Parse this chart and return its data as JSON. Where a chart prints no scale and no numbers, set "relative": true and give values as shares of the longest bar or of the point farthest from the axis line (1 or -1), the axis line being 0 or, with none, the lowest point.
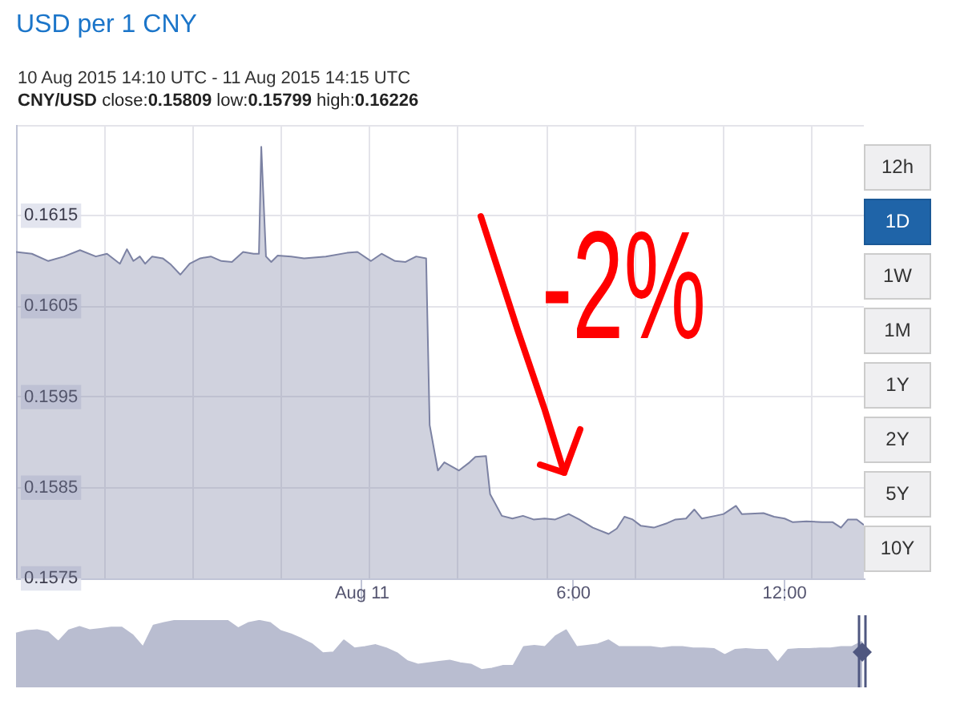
{
  "chart_data": [
    {
      "type": "area",
      "title": "USD per 1 CNY",
      "subtitle": "10 Aug 2015 14:10 UTC - 11 Aug 2015 14:15 UTC",
      "annotations": [
        "CNY/USD close:0.15809 low:0.15799 high:0.16226",
        "-2%",
        "12h",
        "1D",
        "1W",
        "1M",
        "1Y",
        "2Y",
        "5Y",
        "10Y"
      ],
      "x": [
        "2015-08-10T14:10",
        "2015-08-10T14:37",
        "2015-08-10T15:05",
        "2015-08-10T15:32",
        "2015-08-10T15:59",
        "2015-08-10T16:26",
        "2015-08-10T16:45",
        "2015-08-10T17:07",
        "2015-08-10T17:19",
        "2015-08-10T17:30",
        "2015-08-10T17:41",
        "2015-08-10T17:50",
        "2015-08-10T18:02",
        "2015-08-10T18:20",
        "2015-08-10T18:34",
        "2015-08-10T18:50",
        "2015-08-10T19:06",
        "2015-08-10T19:24",
        "2015-08-10T19:42",
        "2015-08-10T20:00",
        "2015-08-10T20:18",
        "2015-08-10T20:37",
        "2015-08-10T20:55",
        "2015-08-10T21:04",
        "2015-08-10T21:08",
        "2015-08-10T21:16",
        "2015-08-10T21:25",
        "2015-08-10T21:36",
        "2015-08-10T21:59",
        "2015-08-10T22:21",
        "2015-08-10T22:58",
        "2015-08-10T23:34",
        "2015-08-10T23:52",
        "2015-08-11T00:15",
        "2015-08-11T00:33",
        "2015-08-11T00:56",
        "2015-08-11T01:14",
        "2015-08-11T01:32",
        "2015-08-11T01:49",
        "2015-08-11T01:55",
        "2015-08-11T02:09",
        "2015-08-11T02:20",
        "2015-08-11T02:45",
        "2015-08-11T03:03",
        "2015-08-11T03:13",
        "2015-08-11T03:31",
        "2015-08-11T03:38",
        "2015-08-11T03:58",
        "2015-08-11T04:16",
        "2015-08-11T04:34",
        "2015-08-11T04:52",
        "2015-08-11T05:11",
        "2015-08-11T05:29",
        "2015-08-11T05:52",
        "2015-08-11T06:10",
        "2015-08-11T06:33",
        "2015-08-11T07:00",
        "2015-08-11T07:14",
        "2015-08-11T07:27",
        "2015-08-11T07:41",
        "2015-08-11T07:55",
        "2015-08-11T08:17",
        "2015-08-11T08:40",
        "2015-08-11T08:54",
        "2015-08-11T09:12",
        "2015-08-11T09:26",
        "2015-08-11T09:39",
        "2015-08-11T10:02",
        "2015-08-11T10:16",
        "2015-08-11T10:37",
        "2015-08-11T10:47",
        "2015-08-11T11:24",
        "2015-08-11T11:42",
        "2015-08-11T12:00",
        "2015-08-11T12:14",
        "2015-08-11T12:37",
        "2015-08-11T13:04",
        "2015-08-11T13:22",
        "2015-08-11T13:36",
        "2015-08-11T13:48",
        "2015-08-11T14:03",
        "2015-08-11T14:15"
      ],
      "values": [
        0.1611,
        0.16108,
        0.161,
        0.16105,
        0.16112,
        0.16105,
        0.16108,
        0.16097,
        0.16113,
        0.161,
        0.16105,
        0.16097,
        0.16105,
        0.16103,
        0.16096,
        0.16085,
        0.16097,
        0.16103,
        0.16105,
        0.161,
        0.16099,
        0.1611,
        0.16108,
        0.16108,
        0.16226,
        0.16105,
        0.16099,
        0.16106,
        0.16105,
        0.16103,
        0.16105,
        0.16109,
        0.1611,
        0.161,
        0.16108,
        0.161,
        0.16099,
        0.16105,
        0.16103,
        0.15919,
        0.15869,
        0.15878,
        0.15869,
        0.15878,
        0.15884,
        0.15885,
        0.15843,
        0.15819,
        0.15816,
        0.15819,
        0.15815,
        0.15816,
        0.15815,
        0.15821,
        0.15815,
        0.15806,
        0.15799,
        0.15805,
        0.15818,
        0.15815,
        0.15808,
        0.15806,
        0.15811,
        0.15815,
        0.15816,
        0.15826,
        0.15816,
        0.15819,
        0.15821,
        0.1583,
        0.15821,
        0.15822,
        0.15818,
        0.15816,
        0.15812,
        0.15813,
        0.15812,
        0.15812,
        0.15806,
        0.15815,
        0.15815,
        0.15809
      ],
      "color": "#7c82a3",
      "xlim": [
        "2015-08-10T14:10",
        "2015-08-11T14:15"
      ],
      "xticks": [
        {
          "value": "2015-08-10T16:41",
          "label": null
        },
        {
          "value": "2015-08-10T19:12",
          "label": null
        },
        {
          "value": "2015-08-10T21:42",
          "label": null
        },
        {
          "value": "2015-08-11T00:00",
          "label": "Aug 11"
        },
        {
          "value": "2015-08-11T00:12",
          "label": null
        },
        {
          "value": "2015-08-11T02:43",
          "label": null
        },
        {
          "value": "2015-08-11T05:15",
          "label": null
        },
        {
          "value": "2015-08-11T06:00",
          "label": "6:00"
        },
        {
          "value": "2015-08-11T07:45",
          "label": null
        },
        {
          "value": "2015-08-11T10:16",
          "label": null
        },
        {
          "value": "2015-08-11T12:00",
          "label": "12:00"
        },
        {
          "value": "2015-08-11T12:46",
          "label": null
        }
      ],
      "ylim": [
        0.1575,
        0.1625
      ],
      "yticks": [
        0.1575,
        0.1585,
        0.1595,
        0.1605,
        0.1615,
        {
          "value": 0.1625,
          "label": null
        }
      ],
      "grid": true
    },
    {
      "type": "area",
      "categories": [
        null,
        null,
        null,
        null,
        null,
        null,
        null,
        null,
        null,
        null,
        null,
        null,
        null,
        null,
        null,
        null,
        null,
        null,
        null,
        null,
        null,
        null,
        null,
        null,
        null,
        null,
        null,
        null,
        null,
        null,
        null,
        null,
        null,
        null,
        null,
        null,
        null,
        null,
        null,
        null,
        null,
        null,
        null,
        null,
        null,
        null,
        null,
        null,
        null,
        null,
        null,
        null,
        null,
        null,
        null,
        null,
        null,
        null,
        null,
        null,
        null,
        null,
        null,
        null,
        null,
        null,
        null,
        null,
        null,
        null,
        null,
        null,
        null,
        null,
        null,
        null,
        null,
        null,
        null,
        null,
        null
      ],
      "values": [
        0.8,
        0.84,
        0.85,
        0.82,
        0.68,
        0.85,
        0.9,
        0.85,
        0.87,
        0.89,
        0.89,
        0.78,
        0.6,
        0.92,
        0.96,
        0.99,
        0.99,
        0.99,
        1.0,
        0.99,
        0.99,
        0.88,
        0.96,
        0.99,
        0.96,
        0.84,
        0.79,
        0.72,
        0.64,
        0.51,
        0.52,
        0.7,
        0.58,
        0.6,
        0.63,
        0.58,
        0.51,
        0.39,
        0.34,
        0.36,
        0.38,
        0.4,
        0.36,
        0.34,
        0.26,
        0.28,
        0.32,
        0.32,
        0.6,
        0.62,
        0.6,
        0.76,
        0.85,
        0.6,
        0.62,
        0.64,
        0.7,
        0.6,
        0.6,
        0.6,
        0.6,
        0.58,
        0.6,
        0.6,
        0.58,
        0.58,
        0.57,
        0.48,
        0.56,
        0.57,
        0.56,
        0.56,
        0.37,
        0.56,
        0.57,
        0.57,
        0.58,
        0.58,
        0.6,
        0.6,
        0.68
      ],
      "color": "#b9bdd0",
      "relative": true,
      "tick_labels": false
    }
  ]
}
